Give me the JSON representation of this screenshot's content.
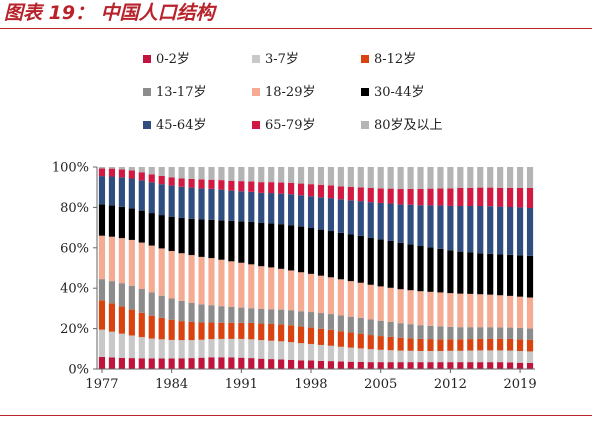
{
  "figure_title": "图表 19：  中国人口结构",
  "chart_data": {
    "type": "bar",
    "stacked": true,
    "normalized": true,
    "legend_position": "top",
    "grid": false,
    "x": [
      1977,
      1978,
      1979,
      1980,
      1981,
      1982,
      1983,
      1984,
      1985,
      1986,
      1987,
      1988,
      1989,
      1990,
      1991,
      1992,
      1993,
      1994,
      1995,
      1996,
      1997,
      1998,
      1999,
      2000,
      2001,
      2002,
      2003,
      2004,
      2005,
      2006,
      2007,
      2008,
      2009,
      2010,
      2011,
      2012,
      2013,
      2014,
      2015,
      2016,
      2017,
      2018,
      2019,
      2020
    ],
    "x_tick_labels": [
      "1977",
      "1984",
      "1991",
      "1998",
      "2005",
      "2012",
      "2019"
    ],
    "y_tick_labels": [
      "0%",
      "20%",
      "40%",
      "60%",
      "80%",
      "100%"
    ],
    "ylim": [
      0,
      100
    ],
    "series": [
      {
        "name": "0-2岁",
        "color": "#c0143c",
        "values": [
          6.0,
          5.7,
          5.5,
          5.4,
          5.3,
          5.2,
          5.2,
          5.2,
          5.3,
          5.4,
          5.6,
          5.8,
          5.8,
          5.7,
          5.6,
          5.4,
          5.1,
          4.9,
          4.7,
          4.5,
          4.3,
          4.2,
          4.0,
          3.9,
          3.7,
          3.6,
          3.5,
          3.4,
          3.4,
          3.4,
          3.4,
          3.4,
          3.4,
          3.4,
          3.4,
          3.4,
          3.4,
          3.4,
          3.4,
          3.4,
          3.4,
          3.3,
          3.1,
          3.0
        ]
      },
      {
        "name": "3-7岁",
        "color": "#c8c8c8",
        "values": [
          13.5,
          12.8,
          12.0,
          11.2,
          10.5,
          9.9,
          9.5,
          9.2,
          9.0,
          8.9,
          8.9,
          9.0,
          9.1,
          9.2,
          9.3,
          9.3,
          9.2,
          9.1,
          9.0,
          8.8,
          8.5,
          8.2,
          7.9,
          7.6,
          7.3,
          7.0,
          6.7,
          6.4,
          6.1,
          5.9,
          5.7,
          5.6,
          5.5,
          5.5,
          5.5,
          5.6,
          5.6,
          5.7,
          5.8,
          5.8,
          5.8,
          5.8,
          5.8,
          5.7
        ]
      },
      {
        "name": "8-12岁",
        "color": "#d9430f",
        "values": [
          14.5,
          14.0,
          13.5,
          12.8,
          12.0,
          11.3,
          10.6,
          10.0,
          9.4,
          9.0,
          8.5,
          8.2,
          8.0,
          8.0,
          8.0,
          8.1,
          8.2,
          8.3,
          8.3,
          8.3,
          8.2,
          8.1,
          8.0,
          7.9,
          7.7,
          7.5,
          7.3,
          7.0,
          6.8,
          6.6,
          6.4,
          6.2,
          6.0,
          5.9,
          5.8,
          5.7,
          5.7,
          5.7,
          5.7,
          5.8,
          5.8,
          5.8,
          5.8,
          5.8
        ]
      },
      {
        "name": "13-17岁",
        "color": "#8c8c8c",
        "values": [
          10.5,
          11.0,
          11.5,
          11.8,
          11.8,
          11.5,
          11.0,
          10.5,
          10.0,
          9.5,
          9.0,
          8.6,
          8.2,
          7.8,
          7.5,
          7.3,
          7.2,
          7.3,
          7.4,
          7.5,
          7.6,
          7.7,
          7.8,
          7.8,
          7.8,
          7.8,
          7.8,
          7.7,
          7.6,
          7.4,
          7.2,
          7.0,
          6.8,
          6.6,
          6.4,
          6.2,
          6.0,
          5.9,
          5.8,
          5.7,
          5.6,
          5.6,
          5.6,
          5.6
        ]
      },
      {
        "name": "18-29岁",
        "color": "#f5ab92",
        "values": [
          21.5,
          22.0,
          22.3,
          22.7,
          23.0,
          23.2,
          23.4,
          23.5,
          23.6,
          23.6,
          23.5,
          23.3,
          23.0,
          22.6,
          22.2,
          21.7,
          21.2,
          20.7,
          20.2,
          19.7,
          19.3,
          18.9,
          18.5,
          18.2,
          17.9,
          17.6,
          17.4,
          17.2,
          17.0,
          16.9,
          16.8,
          16.8,
          16.8,
          16.8,
          16.8,
          16.7,
          16.6,
          16.5,
          16.3,
          16.1,
          15.9,
          15.7,
          15.5,
          15.3
        ]
      },
      {
        "name": "30-44岁",
        "color": "#000000",
        "values": [
          15.5,
          15.5,
          15.5,
          15.6,
          15.8,
          16.1,
          16.5,
          17.0,
          17.5,
          18.0,
          18.5,
          19.0,
          19.5,
          20.0,
          20.5,
          21.0,
          21.4,
          21.8,
          22.1,
          22.4,
          22.6,
          22.7,
          22.8,
          22.9,
          23.0,
          23.1,
          23.2,
          23.3,
          23.3,
          23.2,
          23.0,
          22.7,
          22.4,
          22.0,
          21.6,
          21.2,
          20.8,
          20.5,
          20.3,
          20.2,
          20.2,
          20.3,
          20.5,
          20.6
        ]
      },
      {
        "name": "45-64岁",
        "color": "#2f4d7e",
        "values": [
          14.0,
          14.3,
          14.6,
          14.8,
          15.0,
          15.2,
          15.3,
          15.4,
          15.4,
          15.4,
          15.4,
          15.3,
          15.2,
          15.0,
          14.9,
          14.9,
          14.9,
          15.0,
          15.1,
          15.3,
          15.5,
          15.7,
          16.0,
          16.3,
          16.6,
          16.9,
          17.2,
          17.6,
          18.0,
          18.5,
          19.0,
          19.6,
          20.2,
          20.8,
          21.4,
          22.0,
          22.6,
          23.0,
          23.4,
          23.6,
          23.7,
          23.7,
          23.7,
          23.7
        ]
      },
      {
        "name": "65-79岁",
        "color": "#d21941",
        "values": [
          3.8,
          3.9,
          3.9,
          4.0,
          4.0,
          4.0,
          4.1,
          4.1,
          4.2,
          4.3,
          4.4,
          4.5,
          4.7,
          4.9,
          5.0,
          5.1,
          5.3,
          5.4,
          5.5,
          5.7,
          5.8,
          6.0,
          6.2,
          6.3,
          6.4,
          6.6,
          6.8,
          7.0,
          7.2,
          7.4,
          7.6,
          7.9,
          8.1,
          8.3,
          8.5,
          8.7,
          8.9,
          9.0,
          9.1,
          9.2,
          9.3,
          9.5,
          9.7,
          9.9
        ]
      },
      {
        "name": "80岁及以上",
        "color": "#b4b4b4",
        "values": [
          0.7,
          0.8,
          1.2,
          1.7,
          2.6,
          3.6,
          4.4,
          5.1,
          5.6,
          5.9,
          6.2,
          6.3,
          6.5,
          6.8,
          7.0,
          7.2,
          7.5,
          7.5,
          7.7,
          7.8,
          8.2,
          8.5,
          8.8,
          9.1,
          9.6,
          9.9,
          10.1,
          10.4,
          10.6,
          10.7,
          10.9,
          10.8,
          10.8,
          10.7,
          10.6,
          10.6,
          10.4,
          10.3,
          10.2,
          10.2,
          10.3,
          10.3,
          10.3,
          10.4
        ]
      }
    ]
  }
}
